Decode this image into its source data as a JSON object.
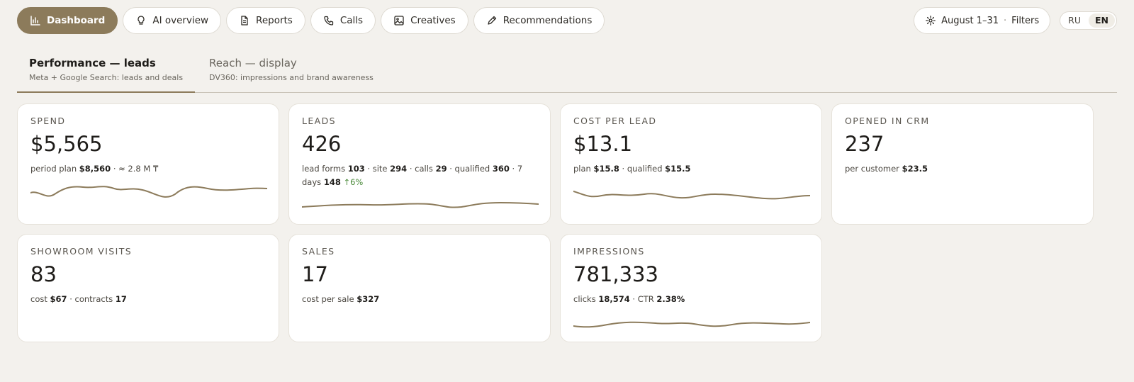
{
  "nav": {
    "items": [
      {
        "label": "Dashboard",
        "icon": "bar-chart-icon",
        "active": true
      },
      {
        "label": "AI overview",
        "icon": "lightbulb-icon"
      },
      {
        "label": "Reports",
        "icon": "document-icon"
      },
      {
        "label": "Calls",
        "icon": "phone-icon"
      },
      {
        "label": "Creatives",
        "icon": "image-icon"
      },
      {
        "label": "Recommendations",
        "icon": "pencil-icon"
      }
    ]
  },
  "filters": {
    "period": "August 1–31",
    "separator": "·",
    "label": "Filters",
    "icon": "gear-icon"
  },
  "language": {
    "options": [
      "RU",
      "EN"
    ],
    "selected": "EN"
  },
  "tabs": [
    {
      "title": "Performance — leads",
      "subtitle": "Meta + Google Search: leads and deals",
      "active": true
    },
    {
      "title": "Reach — display",
      "subtitle": "DV360: impressions and brand awareness"
    }
  ],
  "cards": {
    "spend": {
      "label": "SPEND",
      "value": "$5,565",
      "sub": {
        "plan_label": "period plan",
        "plan_value": "$8,560",
        "sep": "·",
        "approx": "≈ 2.8 M ₸"
      }
    },
    "leads": {
      "label": "LEADS",
      "value": "426",
      "sub": {
        "forms_label": "lead forms",
        "forms_value": "103",
        "site_label": "site",
        "site_value": "294",
        "calls_label": "calls",
        "calls_value": "29",
        "qualified_label": "qualified",
        "qualified_value": "360",
        "days_label": "7 days",
        "days_value": "148",
        "change": "↑6%",
        "sep": "·"
      }
    },
    "cpl": {
      "label": "COST PER LEAD",
      "value": "$13.1",
      "sub": {
        "plan_label": "plan",
        "plan_value": "$15.8",
        "qualified_label": "qualified",
        "qualified_value": "$15.5",
        "sep": "·"
      }
    },
    "crm": {
      "label": "OPENED IN CRM",
      "value": "237",
      "sub": {
        "per_label": "per customer",
        "per_value": "$23.5"
      }
    },
    "showroom": {
      "label": "SHOWROOM VISITS",
      "value": "83",
      "sub": {
        "cost_label": "cost",
        "cost_value": "$67",
        "contracts_label": "contracts",
        "contracts_value": "17",
        "sep": "·"
      }
    },
    "sales": {
      "label": "SALES",
      "value": "17",
      "sub": {
        "cps_label": "cost per sale",
        "cps_value": "$327"
      }
    },
    "impressions": {
      "label": "IMPRESSIONS",
      "value": "781,333",
      "sub": {
        "clicks_label": "clicks",
        "clicks_value": "18,574",
        "ctr_label": "CTR",
        "ctr_value": "2.38%",
        "sep": "·"
      }
    }
  },
  "colors": {
    "accent": "#8c7b5b",
    "background": "#f3f1ed",
    "positive": "#4a8a3a"
  }
}
